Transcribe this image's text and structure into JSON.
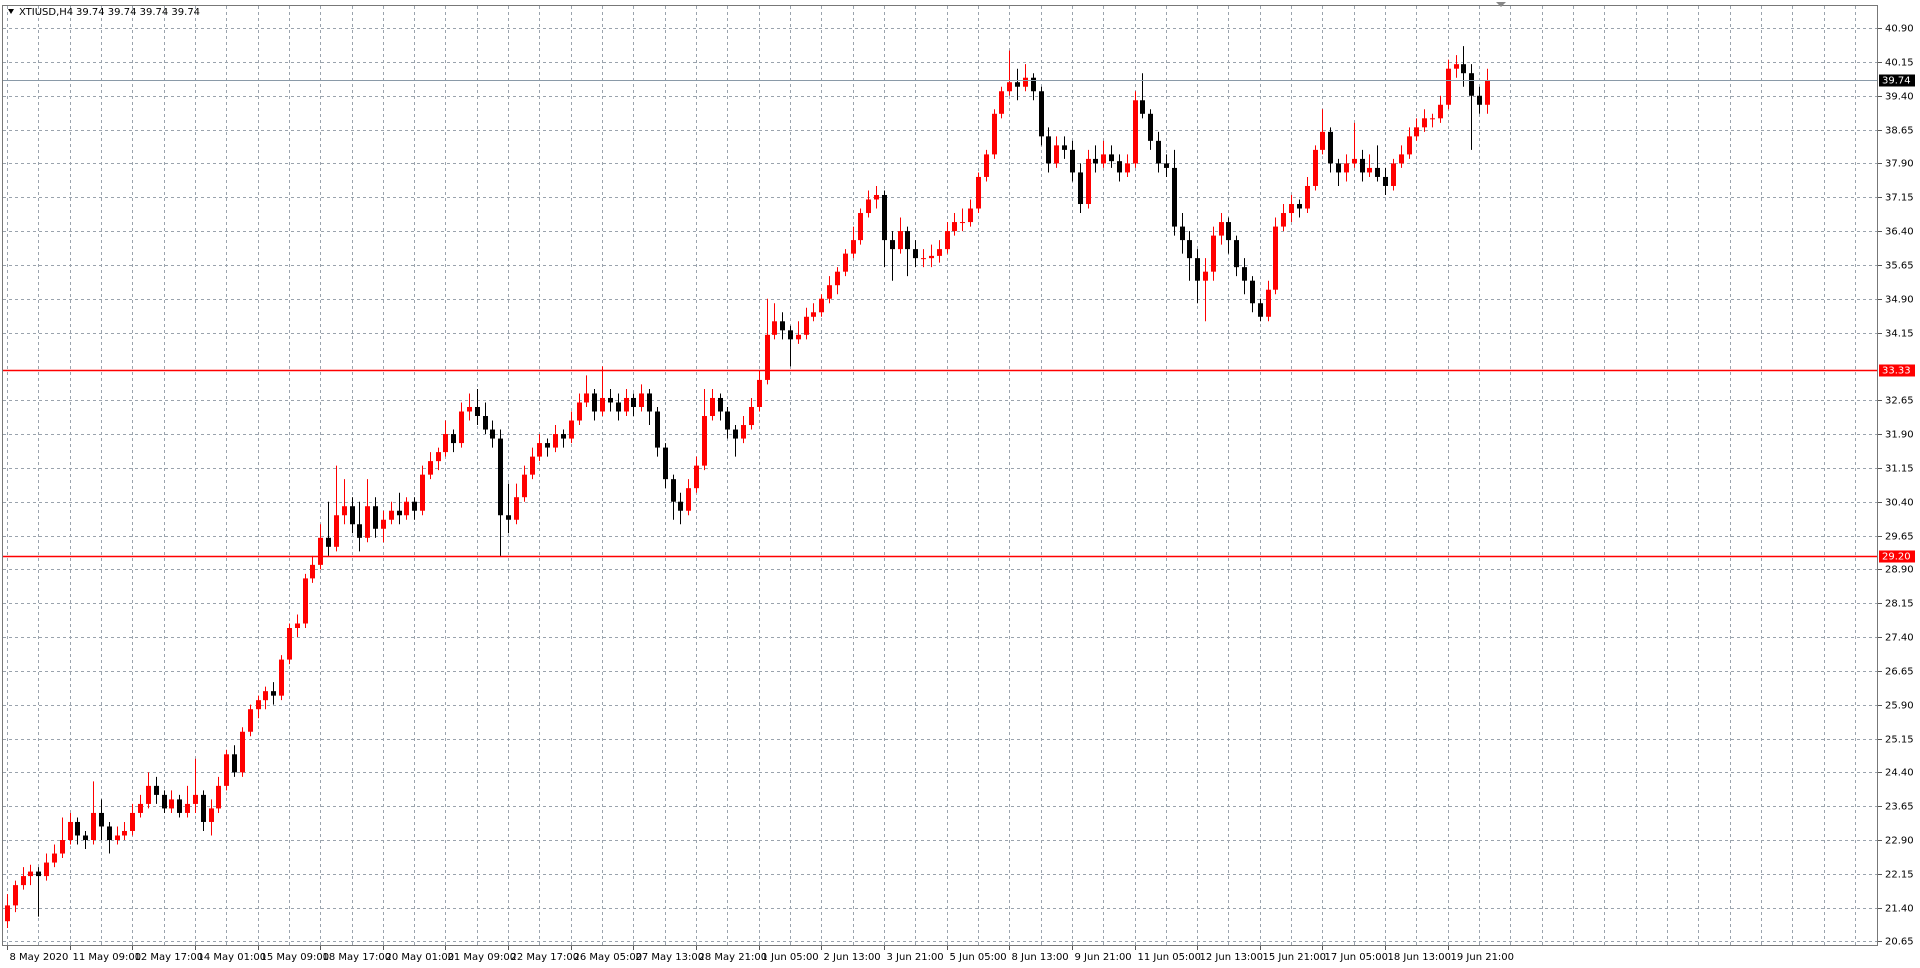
{
  "chart_data": {
    "type": "candlestick",
    "symbol": "XTIUSD,H4",
    "quote": "39.74 39.74 39.74 39.74",
    "up_color": "#ff0000",
    "down_color": "#000000",
    "grid": true,
    "ylim": [
      20.55,
      41.39
    ],
    "yticks": [
      {
        "value": 40.9,
        "label": "40.90"
      },
      {
        "value": 40.15,
        "label": "40.15"
      },
      {
        "value": 39.4,
        "label": "39.40"
      },
      {
        "value": 38.65,
        "label": "38.65"
      },
      {
        "value": 37.9,
        "label": "37.90"
      },
      {
        "value": 37.15,
        "label": "37.15"
      },
      {
        "value": 36.4,
        "label": "36.40"
      },
      {
        "value": 35.65,
        "label": "35.65"
      },
      {
        "value": 34.9,
        "label": "34.90"
      },
      {
        "value": 34.15,
        "label": "34.15"
      },
      {
        "value": 32.65,
        "label": "32.65"
      },
      {
        "value": 31.9,
        "label": "31.90"
      },
      {
        "value": 31.15,
        "label": "31.15"
      },
      {
        "value": 30.4,
        "label": "30.40"
      },
      {
        "value": 29.65,
        "label": "29.65"
      },
      {
        "value": 28.9,
        "label": "28.90"
      },
      {
        "value": 28.15,
        "label": "28.15"
      },
      {
        "value": 27.4,
        "label": "27.40"
      },
      {
        "value": 26.65,
        "label": "26.65"
      },
      {
        "value": 25.9,
        "label": "25.90"
      },
      {
        "value": 25.15,
        "label": "25.15"
      },
      {
        "value": 24.4,
        "label": "24.40"
      },
      {
        "value": 23.65,
        "label": "23.65"
      },
      {
        "value": 22.9,
        "label": "22.90"
      },
      {
        "value": 22.15,
        "label": "22.15"
      },
      {
        "value": 21.4,
        "label": "21.40"
      },
      {
        "value": 20.65,
        "label": "20.65"
      }
    ],
    "hlines": [
      {
        "value": 33.33,
        "label": "33.33",
        "color": "#ff0000"
      },
      {
        "value": 29.2,
        "label": "29.20",
        "color": "#ff0000"
      }
    ],
    "last_price": 39.74,
    "xlabels": [
      "8 May 2020",
      "11 May 09:00",
      "12 May 17:00",
      "14 May 01:00",
      "15 May 09:00",
      "18 May 17:00",
      "20 May 01:00",
      "21 May 09:00",
      "22 May 17:00",
      "26 May 05:00",
      "27 May 13:00",
      "28 May 21:00",
      "1 Jun 05:00",
      "2 Jun 13:00",
      "3 Jun 21:00",
      "5 Jun 05:00",
      "8 Jun 13:00",
      "9 Jun 21:00",
      "11 Jun 05:00",
      "12 Jun 13:00",
      "15 Jun 21:00",
      "17 Jun 05:00",
      "18 Jun 13:00",
      "19 Jun 21:00"
    ],
    "candles": [
      [
        21.1,
        21.7,
        20.95,
        21.45
      ],
      [
        21.45,
        22.0,
        21.3,
        21.9
      ],
      [
        21.9,
        22.3,
        21.8,
        22.1
      ],
      [
        22.1,
        22.35,
        21.9,
        22.2
      ],
      [
        22.2,
        22.3,
        21.2,
        22.1
      ],
      [
        22.1,
        22.6,
        22.0,
        22.4
      ],
      [
        22.4,
        22.8,
        22.3,
        22.6
      ],
      [
        22.6,
        23.4,
        22.5,
        22.9
      ],
      [
        22.9,
        23.5,
        22.8,
        23.3
      ],
      [
        23.3,
        23.4,
        22.8,
        23.0
      ],
      [
        23.0,
        23.1,
        22.7,
        22.9
      ],
      [
        22.9,
        24.2,
        22.8,
        23.5
      ],
      [
        23.5,
        23.8,
        22.9,
        23.2
      ],
      [
        23.2,
        23.3,
        22.6,
        22.9
      ],
      [
        22.9,
        23.2,
        22.8,
        23.0
      ],
      [
        23.0,
        23.3,
        22.9,
        23.1
      ],
      [
        23.1,
        23.7,
        23.0,
        23.5
      ],
      [
        23.5,
        23.9,
        23.4,
        23.7
      ],
      [
        23.7,
        24.4,
        23.6,
        24.1
      ],
      [
        24.1,
        24.3,
        23.7,
        23.9
      ],
      [
        23.9,
        24.0,
        23.5,
        23.6
      ],
      [
        23.6,
        24.0,
        23.5,
        23.8
      ],
      [
        23.8,
        23.9,
        23.4,
        23.5
      ],
      [
        23.5,
        24.1,
        23.4,
        23.7
      ],
      [
        23.7,
        24.7,
        23.5,
        23.9
      ],
      [
        23.9,
        24.0,
        23.1,
        23.3
      ],
      [
        23.3,
        23.8,
        23.0,
        23.6
      ],
      [
        23.6,
        24.3,
        23.5,
        24.1
      ],
      [
        24.1,
        24.9,
        24.0,
        24.8
      ],
      [
        24.8,
        25.0,
        24.3,
        24.4
      ],
      [
        24.4,
        25.4,
        24.3,
        25.3
      ],
      [
        25.3,
        25.9,
        25.2,
        25.8
      ],
      [
        25.8,
        26.1,
        25.6,
        26.0
      ],
      [
        26.0,
        26.3,
        25.8,
        26.2
      ],
      [
        26.2,
        26.4,
        25.9,
        26.1
      ],
      [
        26.1,
        27.0,
        26.0,
        26.9
      ],
      [
        26.9,
        27.7,
        26.8,
        27.6
      ],
      [
        27.6,
        27.9,
        27.4,
        27.7
      ],
      [
        27.7,
        28.8,
        27.6,
        28.7
      ],
      [
        28.7,
        29.2,
        28.6,
        29.0
      ],
      [
        29.0,
        29.9,
        28.9,
        29.6
      ],
      [
        29.6,
        30.4,
        29.2,
        29.4
      ],
      [
        29.4,
        31.2,
        29.3,
        30.1
      ],
      [
        30.1,
        30.9,
        29.9,
        30.3
      ],
      [
        30.3,
        30.5,
        29.7,
        29.9
      ],
      [
        29.9,
        30.4,
        29.3,
        29.6
      ],
      [
        29.6,
        30.9,
        29.5,
        30.3
      ],
      [
        30.3,
        30.5,
        29.6,
        29.8
      ],
      [
        29.8,
        30.2,
        29.5,
        30.0
      ],
      [
        30.0,
        30.4,
        29.9,
        30.2
      ],
      [
        30.2,
        30.6,
        29.9,
        30.1
      ],
      [
        30.1,
        30.5,
        30.0,
        30.4
      ],
      [
        30.4,
        30.5,
        30.0,
        30.2
      ],
      [
        30.2,
        31.2,
        30.1,
        31.0
      ],
      [
        31.0,
        31.5,
        30.9,
        31.3
      ],
      [
        31.3,
        31.6,
        31.1,
        31.5
      ],
      [
        31.5,
        32.2,
        31.4,
        31.9
      ],
      [
        31.9,
        32.0,
        31.5,
        31.7
      ],
      [
        31.7,
        32.6,
        31.6,
        32.4
      ],
      [
        32.4,
        32.8,
        32.2,
        32.5
      ],
      [
        32.5,
        32.9,
        32.1,
        32.3
      ],
      [
        32.3,
        32.6,
        31.9,
        32.0
      ],
      [
        32.0,
        32.2,
        31.6,
        31.8
      ],
      [
        31.8,
        32.0,
        29.2,
        30.1
      ],
      [
        30.1,
        30.8,
        29.7,
        30.0
      ],
      [
        30.0,
        30.8,
        29.9,
        30.5
      ],
      [
        30.5,
        31.2,
        30.4,
        31.0
      ],
      [
        31.0,
        31.6,
        30.9,
        31.4
      ],
      [
        31.4,
        31.9,
        31.3,
        31.7
      ],
      [
        31.7,
        31.8,
        31.4,
        31.6
      ],
      [
        31.6,
        32.1,
        31.5,
        31.9
      ],
      [
        31.9,
        32.0,
        31.6,
        31.8
      ],
      [
        31.8,
        32.4,
        31.7,
        32.2
      ],
      [
        32.2,
        32.8,
        32.1,
        32.6
      ],
      [
        32.6,
        33.2,
        32.5,
        32.8
      ],
      [
        32.8,
        32.9,
        32.2,
        32.4
      ],
      [
        32.4,
        33.4,
        32.3,
        32.7
      ],
      [
        32.7,
        32.9,
        32.4,
        32.6
      ],
      [
        32.6,
        32.8,
        32.2,
        32.4
      ],
      [
        32.4,
        32.9,
        32.3,
        32.7
      ],
      [
        32.7,
        32.8,
        32.3,
        32.5
      ],
      [
        32.5,
        33.0,
        32.4,
        32.8
      ],
      [
        32.8,
        32.9,
        32.1,
        32.4
      ],
      [
        32.4,
        32.5,
        31.4,
        31.6
      ],
      [
        31.6,
        31.7,
        30.7,
        30.9
      ],
      [
        30.9,
        31.0,
        30.0,
        30.4
      ],
      [
        30.4,
        30.6,
        29.9,
        30.2
      ],
      [
        30.2,
        30.9,
        30.1,
        30.7
      ],
      [
        30.7,
        31.4,
        30.6,
        31.2
      ],
      [
        31.2,
        32.9,
        31.1,
        32.3
      ],
      [
        32.3,
        32.9,
        32.2,
        32.7
      ],
      [
        32.7,
        32.8,
        32.2,
        32.4
      ],
      [
        32.4,
        32.5,
        31.8,
        32.0
      ],
      [
        32.0,
        32.1,
        31.4,
        31.8
      ],
      [
        31.8,
        32.3,
        31.7,
        32.1
      ],
      [
        32.1,
        32.7,
        32.0,
        32.5
      ],
      [
        32.5,
        33.3,
        32.4,
        33.1
      ],
      [
        33.1,
        34.9,
        33.0,
        34.1
      ],
      [
        34.1,
        34.8,
        34.0,
        34.4
      ],
      [
        34.4,
        34.6,
        34.0,
        34.2
      ],
      [
        34.2,
        34.3,
        33.4,
        34.0
      ],
      [
        34.0,
        34.4,
        33.9,
        34.1
      ],
      [
        34.1,
        34.7,
        34.0,
        34.5
      ],
      [
        34.5,
        34.8,
        34.4,
        34.6
      ],
      [
        34.6,
        35.0,
        34.5,
        34.9
      ],
      [
        34.9,
        35.4,
        34.8,
        35.2
      ],
      [
        35.2,
        35.6,
        35.0,
        35.5
      ],
      [
        35.5,
        36.0,
        35.4,
        35.9
      ],
      [
        35.9,
        36.5,
        35.8,
        36.2
      ],
      [
        36.2,
        36.9,
        36.1,
        36.8
      ],
      [
        36.8,
        37.3,
        36.7,
        37.1
      ],
      [
        37.1,
        37.4,
        36.9,
        37.2
      ],
      [
        37.2,
        37.3,
        35.6,
        36.2
      ],
      [
        36.2,
        36.4,
        35.3,
        36.0
      ],
      [
        36.0,
        36.7,
        35.9,
        36.4
      ],
      [
        36.4,
        36.5,
        35.4,
        36.0
      ],
      [
        36.0,
        36.2,
        35.6,
        35.8
      ],
      [
        35.8,
        36.0,
        35.6,
        35.8
      ],
      [
        35.8,
        36.1,
        35.6,
        35.85
      ],
      [
        35.85,
        36.2,
        35.7,
        36.0
      ],
      [
        36.0,
        36.6,
        35.9,
        36.4
      ],
      [
        36.4,
        36.8,
        36.3,
        36.6
      ],
      [
        36.6,
        36.9,
        36.4,
        36.6
      ],
      [
        36.6,
        37.1,
        36.5,
        36.9
      ],
      [
        36.9,
        37.7,
        36.8,
        37.6
      ],
      [
        37.6,
        38.2,
        37.5,
        38.1
      ],
      [
        38.1,
        39.1,
        38.0,
        39.0
      ],
      [
        39.0,
        39.6,
        38.9,
        39.5
      ],
      [
        39.5,
        40.4,
        39.4,
        39.7
      ],
      [
        39.7,
        40.0,
        39.3,
        39.6
      ],
      [
        39.6,
        40.1,
        39.5,
        39.8
      ],
      [
        39.8,
        39.9,
        39.3,
        39.5
      ],
      [
        39.5,
        39.6,
        38.3,
        38.5
      ],
      [
        38.5,
        38.7,
        37.7,
        37.9
      ],
      [
        37.9,
        38.5,
        37.8,
        38.3
      ],
      [
        38.3,
        38.5,
        38.0,
        38.2
      ],
      [
        38.2,
        38.4,
        37.5,
        37.7
      ],
      [
        37.7,
        37.9,
        36.8,
        37.0
      ],
      [
        37.0,
        38.2,
        36.9,
        38.0
      ],
      [
        38.0,
        38.3,
        37.7,
        37.9
      ],
      [
        37.9,
        38.4,
        37.8,
        38.1
      ],
      [
        38.1,
        38.3,
        37.8,
        37.95
      ],
      [
        37.95,
        38.1,
        37.5,
        37.7
      ],
      [
        37.7,
        38.1,
        37.6,
        37.9
      ],
      [
        37.9,
        39.5,
        37.8,
        39.3
      ],
      [
        39.3,
        39.9,
        38.9,
        39.0
      ],
      [
        39.0,
        39.1,
        38.2,
        38.4
      ],
      [
        38.4,
        38.6,
        37.7,
        37.9
      ],
      [
        37.9,
        38.1,
        37.6,
        37.8
      ],
      [
        37.8,
        38.2,
        36.3,
        36.5
      ],
      [
        36.5,
        36.8,
        35.9,
        36.2
      ],
      [
        36.2,
        36.4,
        35.3,
        35.8
      ],
      [
        35.8,
        36.0,
        34.8,
        35.3
      ],
      [
        35.3,
        35.8,
        34.4,
        35.5
      ],
      [
        35.5,
        36.5,
        35.3,
        36.3
      ],
      [
        36.3,
        36.8,
        36.1,
        36.6
      ],
      [
        36.6,
        36.7,
        35.9,
        36.2
      ],
      [
        36.2,
        36.3,
        35.4,
        35.6
      ],
      [
        35.6,
        35.8,
        35.0,
        35.3
      ],
      [
        35.3,
        35.4,
        34.6,
        34.8
      ],
      [
        34.8,
        34.9,
        34.4,
        34.5
      ],
      [
        34.5,
        35.3,
        34.4,
        35.1
      ],
      [
        35.1,
        36.7,
        35.0,
        36.5
      ],
      [
        36.5,
        37.0,
        36.4,
        36.8
      ],
      [
        36.8,
        37.2,
        36.6,
        37.0
      ],
      [
        37.0,
        37.1,
        36.7,
        36.9
      ],
      [
        36.9,
        37.6,
        36.8,
        37.4
      ],
      [
        37.4,
        38.3,
        37.3,
        38.2
      ],
      [
        38.2,
        39.1,
        38.1,
        38.6
      ],
      [
        38.6,
        38.7,
        37.7,
        37.9
      ],
      [
        37.9,
        38.0,
        37.4,
        37.7
      ],
      [
        37.7,
        38.1,
        37.5,
        37.9
      ],
      [
        37.9,
        38.8,
        37.8,
        38.0
      ],
      [
        38.0,
        38.2,
        37.5,
        37.7
      ],
      [
        37.7,
        38.1,
        37.6,
        37.8
      ],
      [
        37.8,
        38.3,
        37.5,
        37.6
      ],
      [
        37.6,
        37.8,
        37.2,
        37.4
      ],
      [
        37.4,
        38.0,
        37.3,
        37.9
      ],
      [
        37.9,
        38.3,
        37.8,
        38.1
      ],
      [
        38.1,
        38.7,
        38.0,
        38.5
      ],
      [
        38.5,
        38.9,
        38.4,
        38.7
      ],
      [
        38.7,
        39.1,
        38.6,
        38.9
      ],
      [
        38.9,
        39.0,
        38.7,
        38.9
      ],
      [
        38.9,
        39.4,
        38.8,
        39.2
      ],
      [
        39.2,
        40.2,
        39.1,
        40.0
      ],
      [
        40.0,
        40.3,
        39.8,
        40.1
      ],
      [
        40.1,
        40.5,
        39.6,
        39.9
      ],
      [
        39.9,
        40.1,
        38.2,
        39.4
      ],
      [
        39.4,
        39.6,
        39.0,
        39.2
      ],
      [
        39.2,
        40.0,
        39.0,
        39.74
      ]
    ]
  }
}
